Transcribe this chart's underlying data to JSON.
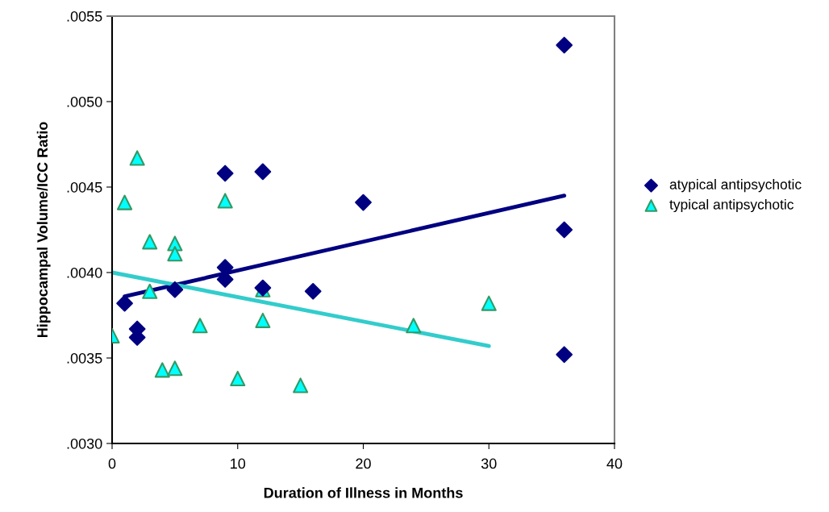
{
  "chart_data": {
    "type": "scatter",
    "xlabel": "Duration of Illness in Months",
    "ylabel": "Hippocampal Volume/ICC Ratio",
    "xlim": [
      0,
      40
    ],
    "xticks": [
      0,
      10,
      20,
      30,
      40
    ],
    "ylim": [
      0.003,
      0.0055
    ],
    "yticks": [
      {
        "value": 0.003,
        "label": ".0030"
      },
      {
        "value": 0.0035,
        "label": ".0035"
      },
      {
        "value": 0.004,
        "label": ".0040"
      },
      {
        "value": 0.0045,
        "label": ".0045"
      },
      {
        "value": 0.005,
        "label": ".0050"
      },
      {
        "value": 0.0055,
        "label": ".0055"
      }
    ],
    "grid": false,
    "legend": "right",
    "series": [
      {
        "name": "atypical antipsychotic",
        "color": "#000080",
        "marker": "diamond",
        "x": [
          1,
          2,
          2,
          5,
          9,
          9,
          9,
          12,
          12,
          16,
          20,
          36,
          36,
          36
        ],
        "values": [
          0.00382,
          0.00367,
          0.00362,
          0.0039,
          0.00458,
          0.00403,
          0.00396,
          0.00459,
          0.00391,
          0.00389,
          0.00441,
          0.00533,
          0.00425,
          0.00352
        ]
      },
      {
        "name": "typical antipsychotic",
        "color": "#00ffff",
        "marker": "triangle",
        "x": [
          0,
          1,
          2,
          3,
          3,
          4,
          5,
          5,
          5,
          7,
          9,
          10,
          12,
          12,
          15,
          24,
          30
        ],
        "values": [
          0.00363,
          0.00441,
          0.00467,
          0.00418,
          0.00389,
          0.00343,
          0.00417,
          0.00411,
          0.00344,
          0.00369,
          0.00442,
          0.00338,
          0.0039,
          0.00372,
          0.00334,
          0.00369,
          0.00382
        ]
      },
      {
        "type": "line",
        "color": "#000080",
        "x": [
          1,
          36
        ],
        "values": [
          0.00386,
          0.00445
        ]
      },
      {
        "type": "line",
        "color": "#33cccc",
        "x": [
          0,
          30
        ],
        "values": [
          0.004,
          0.00357
        ]
      }
    ]
  }
}
